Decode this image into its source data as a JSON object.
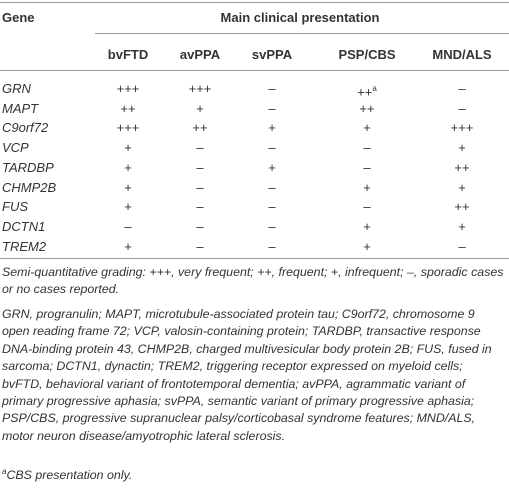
{
  "table": {
    "header": {
      "gene": "Gene",
      "group": "Main clinical presentation"
    },
    "columns": [
      "bvFTD",
      "avPPA",
      "svPPA",
      "PSP/CBS",
      "MND/ALS"
    ],
    "rows": [
      {
        "gene": "GRN",
        "cells": [
          "+++",
          "+++",
          "–",
          {
            "text": "++",
            "note": "a"
          },
          "–"
        ]
      },
      {
        "gene": "MAPT",
        "cells": [
          "++",
          "+",
          "–",
          "++",
          "–"
        ]
      },
      {
        "gene": "C9orf72",
        "cells": [
          "+++",
          "++",
          "+",
          "+",
          "+++"
        ]
      },
      {
        "gene": "VCP",
        "cells": [
          "+",
          "–",
          "–",
          "–",
          "+"
        ]
      },
      {
        "gene": "TARDBP",
        "cells": [
          "+",
          "–",
          "+",
          "–",
          "++"
        ]
      },
      {
        "gene": "CHMP2B",
        "cells": [
          "+",
          "–",
          "–",
          "+",
          "+"
        ]
      },
      {
        "gene": "FUS",
        "cells": [
          "+",
          "–",
          "–",
          "–",
          "++"
        ]
      },
      {
        "gene": "DCTN1",
        "cells": [
          "–",
          "–",
          "–",
          "+",
          "+"
        ]
      },
      {
        "gene": "TREM2",
        "cells": [
          "+",
          "–",
          "–",
          "+",
          "–"
        ]
      }
    ]
  },
  "footnotes": [
    "Semi-quantitative grading: +++, very frequent; ++, frequent; +, infrequent; –, sporadic cases or no cases reported.",
    "GRN, progranulin; MAPT, microtubule-associated protein tau; C9orf72, chromosome 9 open reading frame 72; VCP, valosin-containing protein; TARDBP, transactive response DNA-binding protein 43, CHMP2B, charged multivesicular body protein 2B; FUS, fused in sarcoma; DCTN1, dynactin; TREM2, triggering receptor expressed on myeloid cells; bvFTD, behavioral variant of frontotemporal dementia; avPPA, agrammatic variant of primary progressive aphasia; svPPA, semantic variant of primary progressive aphasia; PSP/CBS, progressive supranuclear palsy/corticobasal syndrome features; MND/ALS, motor neuron disease/amyotrophic lateral sclerosis."
  ],
  "note_a": {
    "mark": "a",
    "text": "CBS presentation only."
  }
}
